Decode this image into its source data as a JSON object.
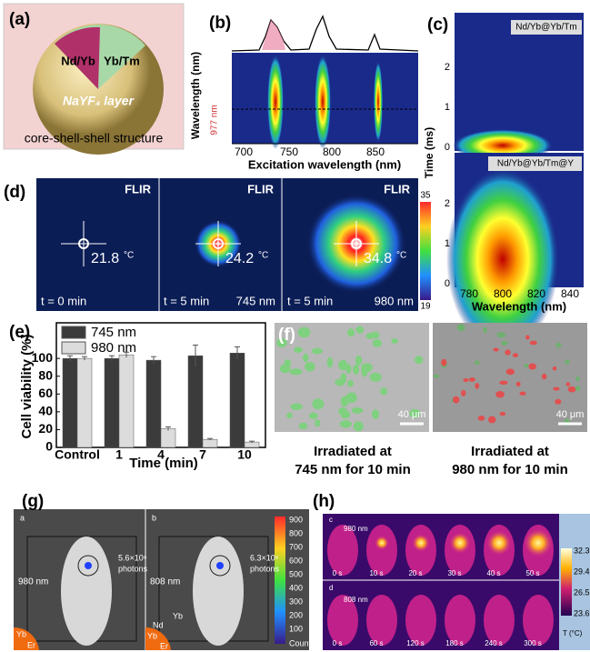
{
  "panels": {
    "a": {
      "label": "(a)",
      "core": "Nd/Yb",
      "inner_shell": "Yb/Tm",
      "outer_shell": "NaYF₄ layer",
      "caption": "core-shell-shell structure"
    },
    "b": {
      "label": "(b)",
      "y_label": "Wavelength (nm)",
      "x_label": "Excitation wavelength (nm)",
      "xticks": [
        700,
        750,
        800,
        850
      ],
      "annotation": "977 nm"
    },
    "c": {
      "label": "(c)",
      "top_title": "Nd/Yb@Yb/Tm",
      "bottom_title": "Nd/Yb@Yb/Tm@Y",
      "y_label": "Time (ms)",
      "top_yticks": [
        0,
        1,
        2
      ],
      "bottom_yticks": [
        0,
        1,
        2
      ],
      "x_label": "Wavelength (nm)",
      "xticks": [
        780,
        800,
        820,
        840
      ]
    },
    "d": {
      "label": "(d)",
      "brand": "FLIR",
      "temperatures": [
        21.8,
        24.2,
        34.8
      ],
      "unit": "°C",
      "times": [
        "t = 0 min",
        "t = 5 min",
        "t = 5 min"
      ],
      "wavelengths": [
        "745 nm",
        "980 nm"
      ],
      "colorbar": [
        35,
        19
      ]
    },
    "f": {
      "label": "(f)",
      "scale_bar": "40 μm",
      "captions": [
        [
          "Irradiated at",
          "745 nm for 10 min"
        ],
        [
          "Irradiated at",
          "980 nm for 10 min"
        ]
      ]
    },
    "g": {
      "label": "(g)",
      "sublabels": [
        "a",
        "b"
      ],
      "lasers": [
        "980 nm",
        "808 nm"
      ],
      "counts": [
        "5.6×10⁸",
        "6.3×10⁸"
      ],
      "photons": "photons",
      "ions_left": [
        "Yb",
        "Er"
      ],
      "ions_right": [
        "Nd",
        "Yb",
        "Yb",
        "Er"
      ],
      "colorbar_ticks": [
        900,
        800,
        700,
        600,
        500,
        400,
        300,
        200,
        100
      ],
      "colorbar_label": "Counts"
    },
    "h": {
      "label": "(h)",
      "sublabels": [
        "c",
        "d"
      ],
      "lasers": [
        "980 nm",
        "808 nm"
      ],
      "times_top": [
        "0 s",
        "10 s",
        "20 s",
        "30 s",
        "40 s",
        "50 s"
      ],
      "times_bottom": [
        "0 s",
        "60 s",
        "120 s",
        "180 s",
        "240 s",
        "300 s"
      ],
      "colorbar_ticks": [
        32.3,
        29.4,
        26.5,
        23.6
      ],
      "colorbar_label": "T (°C)"
    }
  },
  "chart_data": {
    "type": "bar",
    "label": "(e)",
    "y_label": "Cell viability (%)",
    "x_label": "Time (min)",
    "categories": [
      "Control",
      "1",
      "4",
      "7",
      "10"
    ],
    "series": [
      {
        "name": "745 nm",
        "color": "#3b3b3b",
        "values": [
          100,
          100,
          98,
          103,
          106
        ],
        "errors": [
          3,
          3,
          4,
          12,
          7
        ]
      },
      {
        "name": "980 nm",
        "color": "#dcdcdc",
        "values": [
          100,
          104,
          21,
          9,
          6
        ],
        "errors": [
          2,
          3,
          2,
          1,
          1
        ]
      }
    ],
    "ylim": [
      0,
      140
    ],
    "yticks": [
      0,
      20,
      40,
      60,
      80,
      100
    ]
  }
}
